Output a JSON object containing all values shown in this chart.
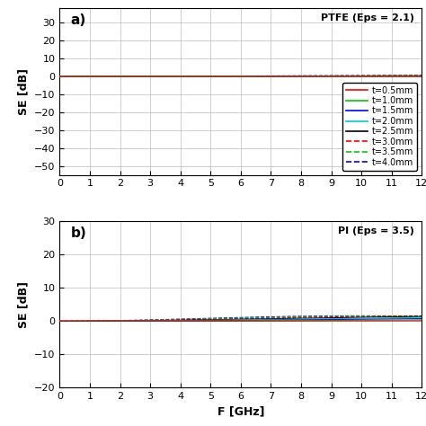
{
  "title_a": "PTFE (Eps = 2.1)",
  "title_b": "PI (Eps = 3.5)",
  "ylabel": "SE [dB]",
  "xlabel": "F [GHz]",
  "xlim": [
    0,
    12
  ],
  "ylim_a": [
    -55,
    38
  ],
  "ylim_b": [
    -20,
    30
  ],
  "yticks_a": [
    -50,
    -40,
    -30,
    -20,
    -10,
    0,
    10,
    20,
    30
  ],
  "yticks_b": [
    -20,
    -10,
    0,
    10,
    20,
    30
  ],
  "xticks": [
    0,
    1,
    2,
    3,
    4,
    5,
    6,
    7,
    8,
    9,
    10,
    11,
    12
  ],
  "legend_labels": [
    "t=0.5mm",
    "t=1.0mm",
    "t=1.5mm",
    "t=2.0mm",
    "t=2.5mm",
    "t=3.0mm",
    "t=3.5mm",
    "t=4.0mm"
  ],
  "legend_colors": [
    "#ff0000",
    "#00cc00",
    "#0000ff",
    "#00cccc",
    "#000000",
    "#ff0000",
    "#00cc00",
    "#0000ff"
  ],
  "legend_styles": [
    "solid",
    "solid",
    "solid",
    "solid",
    "solid",
    "dashed",
    "dashed",
    "dashed"
  ],
  "eps_a": 2.1,
  "eps_b": 3.5,
  "thicknesses_mm": [
    0.5,
    1.0,
    1.5,
    2.0,
    2.5,
    3.0,
    3.5,
    4.0
  ],
  "background_color": "#ffffff",
  "grid_color": "#bbbbbb",
  "npoints": 20000
}
